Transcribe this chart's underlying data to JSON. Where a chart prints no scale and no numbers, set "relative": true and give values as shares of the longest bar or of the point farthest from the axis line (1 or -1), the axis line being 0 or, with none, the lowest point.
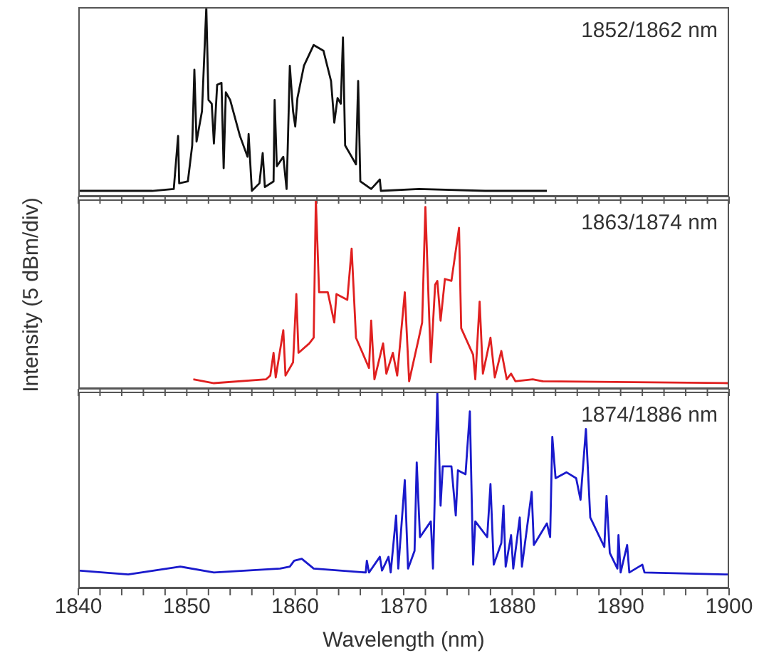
{
  "chart_data": [
    {
      "type": "line",
      "relative": true,
      "annotations": [
        "1852/1862 nm"
      ],
      "xlim": [
        1840,
        1900
      ],
      "xticks": [
        1840,
        1842,
        1844,
        1846,
        1848,
        1850,
        1852,
        1854,
        1856,
        1858,
        1860,
        1862,
        1864,
        1866,
        1868,
        1870,
        1872,
        1874,
        1876,
        1878,
        1880,
        1882,
        1884,
        1886,
        1888,
        1890,
        1892,
        1894,
        1896,
        1898,
        1900
      ],
      "tick_labels": false,
      "x": [
        1840,
        1846.8,
        1848.8,
        1849.2,
        1849.3,
        1850.1,
        1850.5,
        1850.7,
        1850.9,
        1851.4,
        1851.8,
        1852.0,
        1852.3,
        1852.5,
        1852.8,
        1853.2,
        1853.4,
        1853.6,
        1854.0,
        1854.9,
        1855.6,
        1855.7,
        1856.0,
        1856.7,
        1857.0,
        1857.2,
        1858.0,
        1858.1,
        1858.3,
        1858.9,
        1859.2,
        1859.3,
        1859.5,
        1859.8,
        1860.0,
        1860.2,
        1860.8,
        1861.7,
        1862.6,
        1863.3,
        1863.6,
        1863.9,
        1864.2,
        1864.4,
        1864.6,
        1865.2,
        1865.6,
        1865.8,
        1866.0,
        1867.0,
        1867.8,
        1867.9,
        1871.4,
        1877.5,
        1883.2
      ],
      "series": [
        {
          "color": "#111111",
          "values": [
            0.03,
            0.03,
            0.04,
            0.32,
            0.07,
            0.08,
            0.27,
            0.67,
            0.29,
            0.45,
            1.0,
            0.51,
            0.49,
            0.28,
            0.59,
            0.6,
            0.15,
            0.55,
            0.51,
            0.32,
            0.21,
            0.33,
            0.03,
            0.07,
            0.23,
            0.05,
            0.08,
            0.51,
            0.16,
            0.21,
            0.04,
            0.24,
            0.69,
            0.45,
            0.37,
            0.52,
            0.69,
            0.8,
            0.77,
            0.61,
            0.39,
            0.52,
            0.49,
            0.84,
            0.27,
            0.21,
            0.17,
            0.61,
            0.08,
            0.04,
            0.09,
            0.03,
            0.04,
            0.03,
            0.03
          ]
        }
      ]
    },
    {
      "type": "line",
      "relative": true,
      "ylabel": "Intensity (5 dBm/div)",
      "annotations": [
        "1863/1874 nm"
      ],
      "xlim": [
        1840,
        1900
      ],
      "xticks": [
        1840,
        1842,
        1844,
        1846,
        1848,
        1850,
        1852,
        1854,
        1856,
        1858,
        1860,
        1862,
        1864,
        1866,
        1868,
        1870,
        1872,
        1874,
        1876,
        1878,
        1880,
        1882,
        1884,
        1886,
        1888,
        1890,
        1892,
        1894,
        1896,
        1898,
        1900
      ],
      "tick_labels": false,
      "x": [
        1850.6,
        1852.5,
        1857.3,
        1857.7,
        1858.0,
        1858.2,
        1858.9,
        1859.1,
        1859.8,
        1860.1,
        1860.3,
        1861.3,
        1861.7,
        1861.9,
        1862.2,
        1863.0,
        1863.6,
        1863.8,
        1864.8,
        1865.2,
        1865.6,
        1866.8,
        1867.0,
        1867.3,
        1868.1,
        1868.4,
        1869.0,
        1869.4,
        1870.1,
        1870.5,
        1871.4,
        1871.7,
        1872.0,
        1872.3,
        1872.5,
        1872.9,
        1873.1,
        1873.4,
        1873.8,
        1874.4,
        1875.1,
        1875.3,
        1876.4,
        1876.6,
        1877.0,
        1877.3,
        1878.0,
        1878.4,
        1879.0,
        1879.5,
        1879.9,
        1880.3,
        1881.9,
        1882.8,
        1899.9
      ],
      "series": [
        {
          "color": "#e02020",
          "values": [
            0.05,
            0.03,
            0.05,
            0.07,
            0.19,
            0.06,
            0.31,
            0.07,
            0.14,
            0.5,
            0.19,
            0.24,
            0.27,
            1.0,
            0.51,
            0.51,
            0.35,
            0.5,
            0.47,
            0.74,
            0.27,
            0.11,
            0.36,
            0.05,
            0.24,
            0.08,
            0.19,
            0.07,
            0.51,
            0.04,
            0.27,
            0.35,
            0.96,
            0.46,
            0.14,
            0.55,
            0.57,
            0.36,
            0.58,
            0.57,
            0.85,
            0.32,
            0.18,
            0.05,
            0.46,
            0.08,
            0.27,
            0.06,
            0.2,
            0.05,
            0.08,
            0.04,
            0.05,
            0.04,
            0.03
          ]
        }
      ]
    },
    {
      "type": "line",
      "relative": true,
      "xlabel": "Wavelength (nm)",
      "annotations": [
        "1874/1886 nm"
      ],
      "xlim": [
        1840,
        1900
      ],
      "xticks": [
        1840,
        {
          "value": 1842,
          "label": null
        },
        {
          "value": 1844,
          "label": null
        },
        {
          "value": 1846,
          "label": null
        },
        {
          "value": 1848,
          "label": null
        },
        1850,
        {
          "value": 1852,
          "label": null
        },
        {
          "value": 1854,
          "label": null
        },
        {
          "value": 1856,
          "label": null
        },
        {
          "value": 1858,
          "label": null
        },
        1860,
        {
          "value": 1862,
          "label": null
        },
        {
          "value": 1864,
          "label": null
        },
        {
          "value": 1866,
          "label": null
        },
        {
          "value": 1868,
          "label": null
        },
        1870,
        {
          "value": 1872,
          "label": null
        },
        {
          "value": 1874,
          "label": null
        },
        {
          "value": 1876,
          "label": null
        },
        {
          "value": 1878,
          "label": null
        },
        1880,
        {
          "value": 1882,
          "label": null
        },
        {
          "value": 1884,
          "label": null
        },
        {
          "value": 1886,
          "label": null
        },
        {
          "value": 1888,
          "label": null
        },
        1890,
        {
          "value": 1892,
          "label": null
        },
        {
          "value": 1894,
          "label": null
        },
        {
          "value": 1896,
          "label": null
        },
        {
          "value": 1898,
          "label": null
        },
        1900
      ],
      "tick_labels": "x",
      "x": [
        1840,
        1844.6,
        1849.4,
        1852.5,
        1858.6,
        1859.5,
        1859.9,
        1860.6,
        1861.7,
        1866.5,
        1866.6,
        1866.8,
        1867.8,
        1868.0,
        1868.6,
        1868.8,
        1869.3,
        1869.5,
        1870.1,
        1870.4,
        1871.0,
        1871.2,
        1871.5,
        1872.5,
        1872.7,
        1873.1,
        1873.4,
        1873.6,
        1874.4,
        1874.8,
        1875.0,
        1875.7,
        1876.1,
        1876.4,
        1876.6,
        1877.7,
        1878.0,
        1878.3,
        1879.0,
        1879.2,
        1879.4,
        1879.9,
        1880.1,
        1880.7,
        1880.9,
        1881.8,
        1882.0,
        1883.2,
        1883.5,
        1883.7,
        1884.0,
        1885.0,
        1885.9,
        1886.3,
        1886.8,
        1887.2,
        1888.5,
        1888.7,
        1889.0,
        1889.7,
        1889.8,
        1890.0,
        1890.6,
        1890.8,
        1892.0,
        1892.2,
        1899.9
      ],
      "series": [
        {
          "color": "#1a1acc",
          "values": [
            0.09,
            0.07,
            0.11,
            0.08,
            0.1,
            0.11,
            0.14,
            0.15,
            0.1,
            0.08,
            0.14,
            0.08,
            0.16,
            0.09,
            0.16,
            0.08,
            0.37,
            0.1,
            0.55,
            0.1,
            0.19,
            0.64,
            0.26,
            0.34,
            0.1,
            1.0,
            0.42,
            0.62,
            0.62,
            0.37,
            0.6,
            0.58,
            0.9,
            0.12,
            0.34,
            0.26,
            0.53,
            0.12,
            0.23,
            0.42,
            0.11,
            0.27,
            0.1,
            0.36,
            0.11,
            0.49,
            0.22,
            0.33,
            0.26,
            0.77,
            0.56,
            0.59,
            0.56,
            0.45,
            0.81,
            0.36,
            0.21,
            0.47,
            0.18,
            0.1,
            0.27,
            0.08,
            0.22,
            0.08,
            0.12,
            0.08,
            0.07
          ]
        }
      ]
    }
  ]
}
